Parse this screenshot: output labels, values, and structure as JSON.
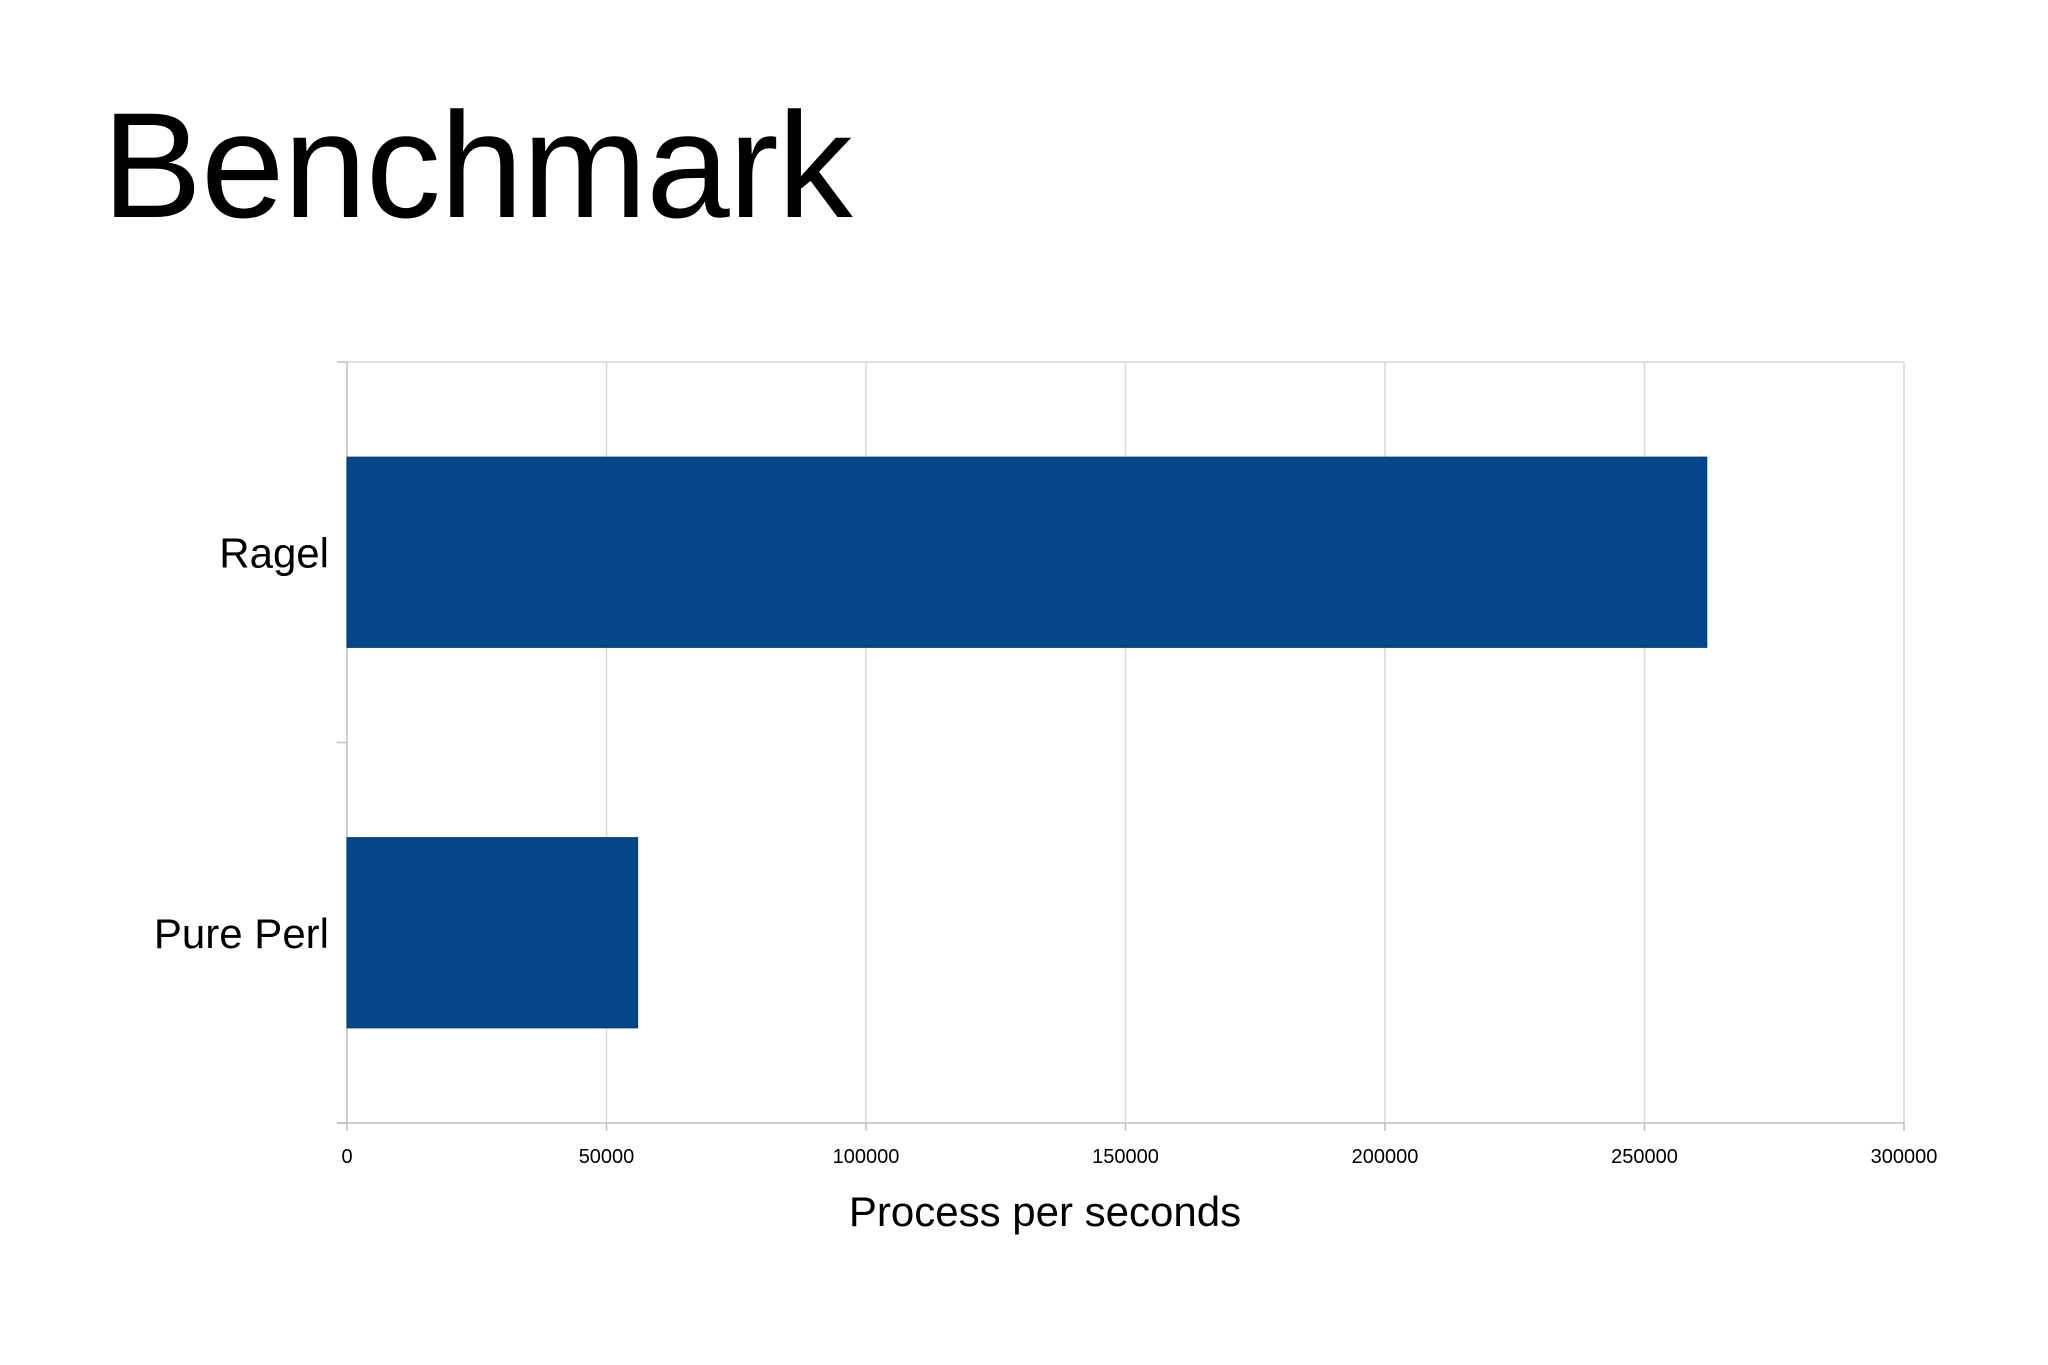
{
  "slide": {
    "title": "Benchmark"
  },
  "chart_data": {
    "type": "bar",
    "orientation": "horizontal",
    "categories": [
      "Ragel",
      "Pure Perl"
    ],
    "series": [
      {
        "values": [
          262000,
          56000
        ]
      }
    ],
    "bar_color": "#04468A",
    "xlim": [
      0,
      300000
    ],
    "xticks": [
      "0",
      "50000",
      "100000",
      "150000",
      "200000",
      "250000",
      "300000"
    ],
    "xlabel": "Process per seconds",
    "ylabel": "",
    "grid": "vertical"
  }
}
